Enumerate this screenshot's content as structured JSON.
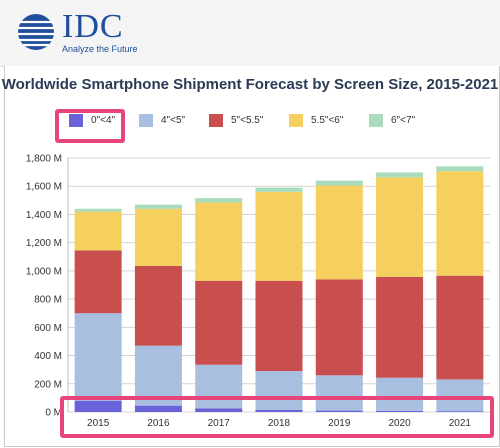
{
  "brand": {
    "name": "IDC",
    "tagline": "Analyze the Future",
    "color": "#1f4e9b"
  },
  "highlight_color": "#e8457a",
  "chart_data": {
    "type": "bar",
    "stacked": true,
    "title": "Worldwide Smartphone Shipment Forecast by Screen Size, 2015-2021",
    "xlabel": "",
    "ylabel": "",
    "categories": [
      "2015",
      "2016",
      "2017",
      "2018",
      "2019",
      "2020",
      "2021"
    ],
    "ylim": [
      0,
      1800
    ],
    "yticks": [
      0,
      200,
      400,
      600,
      800,
      1000,
      1200,
      1400,
      1600,
      1800
    ],
    "ytick_labels": [
      "0 M",
      "200 M",
      "400 M",
      "600 M",
      "800 M",
      "1,000 M",
      "1,200 M",
      "1,400 M",
      "1,600 M",
      "1,800 M"
    ],
    "grid": true,
    "legend_position": "top",
    "series": [
      {
        "name": "0\"<4\"",
        "color": "#6a62d8",
        "values": [
          80,
          45,
          25,
          15,
          10,
          8,
          6
        ]
      },
      {
        "name": "4\"<5\"",
        "color": "#a9bfe0",
        "values": [
          620,
          425,
          310,
          275,
          250,
          235,
          225
        ]
      },
      {
        "name": "5\"<5.5\"",
        "color": "#c94e4e",
        "values": [
          445,
          565,
          595,
          640,
          680,
          715,
          735
        ]
      },
      {
        "name": "5.5\"<6\"",
        "color": "#f5d05e",
        "values": [
          275,
          405,
          555,
          630,
          665,
          705,
          740
        ]
      },
      {
        "name": "6\"<7\"",
        "color": "#a8dcbc",
        "values": [
          20,
          30,
          30,
          30,
          35,
          35,
          35
        ]
      }
    ]
  }
}
